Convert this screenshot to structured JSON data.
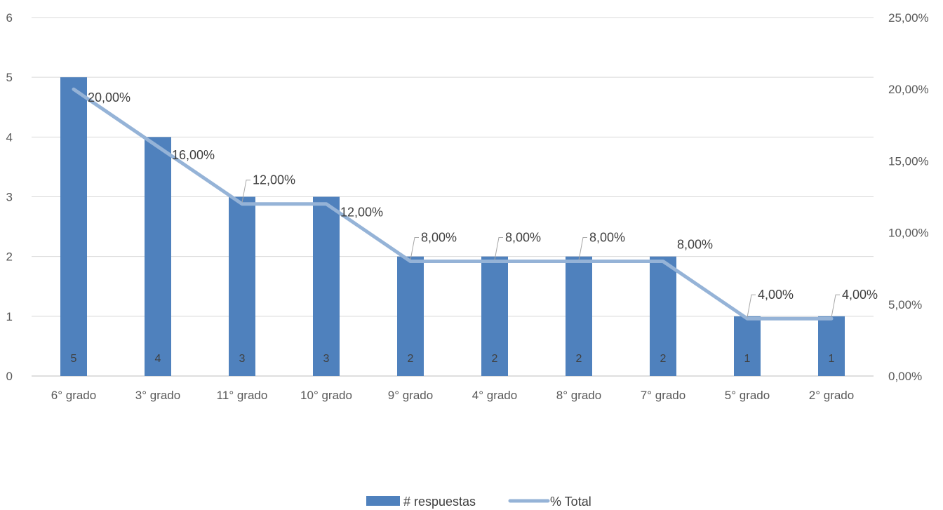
{
  "chart_data": {
    "type": "bar",
    "categories": [
      "6° grado",
      "3° grado",
      "11° grado",
      "10° grado",
      "9° grado",
      "4° grado",
      "8° grado",
      "7° grado",
      "5° grado",
      "2° grado"
    ],
    "series": [
      {
        "name": "# respuestas",
        "type": "bar",
        "axis": "left",
        "color": "#4f81bd",
        "values": [
          5,
          4,
          3,
          3,
          2,
          2,
          2,
          2,
          1,
          1
        ],
        "data_labels": [
          "5",
          "4",
          "3",
          "3",
          "2",
          "2",
          "2",
          "2",
          "1",
          "1"
        ]
      },
      {
        "name": "% Total",
        "type": "line",
        "axis": "right",
        "color": "#95b3d7",
        "values": [
          20,
          16,
          12,
          12,
          8,
          8,
          8,
          8,
          4,
          4
        ],
        "data_labels": [
          "20,00%",
          "16,00%",
          "12,00%",
          "12,00%",
          "8,00%",
          "8,00%",
          "8,00%",
          "8,00%",
          "4,00%",
          "4,00%"
        ]
      }
    ],
    "y_left": {
      "ylim": [
        0,
        6
      ],
      "ticks": [
        "0",
        "1",
        "2",
        "3",
        "4",
        "5",
        "6"
      ]
    },
    "y_right": {
      "ylim": [
        0,
        25
      ],
      "ticks": [
        "0,00%",
        "5,00%",
        "10,00%",
        "15,00%",
        "20,00%",
        "25,00%"
      ]
    },
    "grid": true,
    "legend_position": "bottom"
  }
}
